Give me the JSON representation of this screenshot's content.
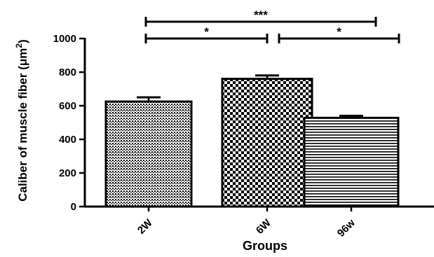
{
  "chart_data": {
    "type": "bar",
    "categories": [
      "2W",
      "6W",
      "96w"
    ],
    "values": [
      625,
      760,
      528
    ],
    "errors": [
      25,
      20,
      12
    ],
    "patterns": [
      "dots",
      "checker",
      "hlines"
    ],
    "xlabel": "Groups",
    "ylabel_main": "Caliber of muscle fiber (",
    "ylabel_unit": "μm",
    "ylabel_sup": "2",
    "ylabel_close": ")",
    "ylim": [
      0,
      1000
    ],
    "yticks": [
      0,
      200,
      400,
      600,
      800,
      1000
    ],
    "significance": [
      {
        "from": 0,
        "to": 2,
        "label": "***",
        "level": 1100
      },
      {
        "from": 0,
        "to": 1,
        "label": "*",
        "level": 1000
      },
      {
        "from": 1,
        "to": 2,
        "label": "*",
        "level": 1000
      }
    ],
    "grid": false,
    "legend": "none"
  }
}
